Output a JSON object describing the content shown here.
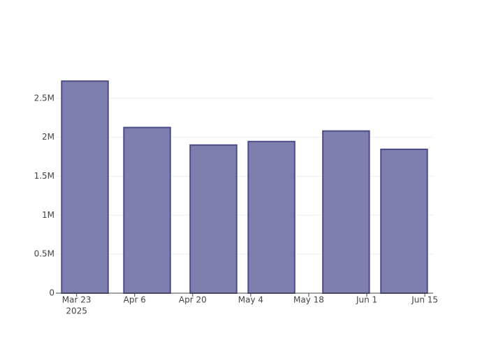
{
  "chart_data": {
    "type": "bar",
    "x": [
      "2025-03-25",
      "2025-04-09",
      "2025-04-25",
      "2025-05-09",
      "2025-05-27",
      "2025-06-10"
    ],
    "values": [
      2720000,
      2125000,
      1900000,
      1945000,
      2080000,
      1845000
    ],
    "color": "#7f7faf",
    "edge_color": "#4b4b88",
    "xlim": [
      "2025-03-18",
      "2025-06-17"
    ],
    "xticks": [
      {
        "value": "2025-03-23",
        "label": "Mar 23"
      },
      {
        "value": "2025-04-06",
        "label": "Apr 6"
      },
      {
        "value": "2025-04-20",
        "label": "Apr 20"
      },
      {
        "value": "2025-05-04",
        "label": "May 4"
      },
      {
        "value": "2025-05-18",
        "label": "May 18"
      },
      {
        "value": "2025-06-01",
        "label": "Jun 1"
      },
      {
        "value": "2025-06-15",
        "label": "Jun 15"
      }
    ],
    "x_year_label": "2025",
    "ylim": [
      0,
      2865000
    ],
    "yticks": [
      0,
      {
        "value": 500000,
        "label": "0.5M"
      },
      {
        "value": 1000000,
        "label": "1M"
      },
      {
        "value": 1500000,
        "label": "1.5M"
      },
      {
        "value": 2000000,
        "label": "2M"
      },
      {
        "value": 2500000,
        "label": "2.5M"
      }
    ],
    "grid": true
  }
}
